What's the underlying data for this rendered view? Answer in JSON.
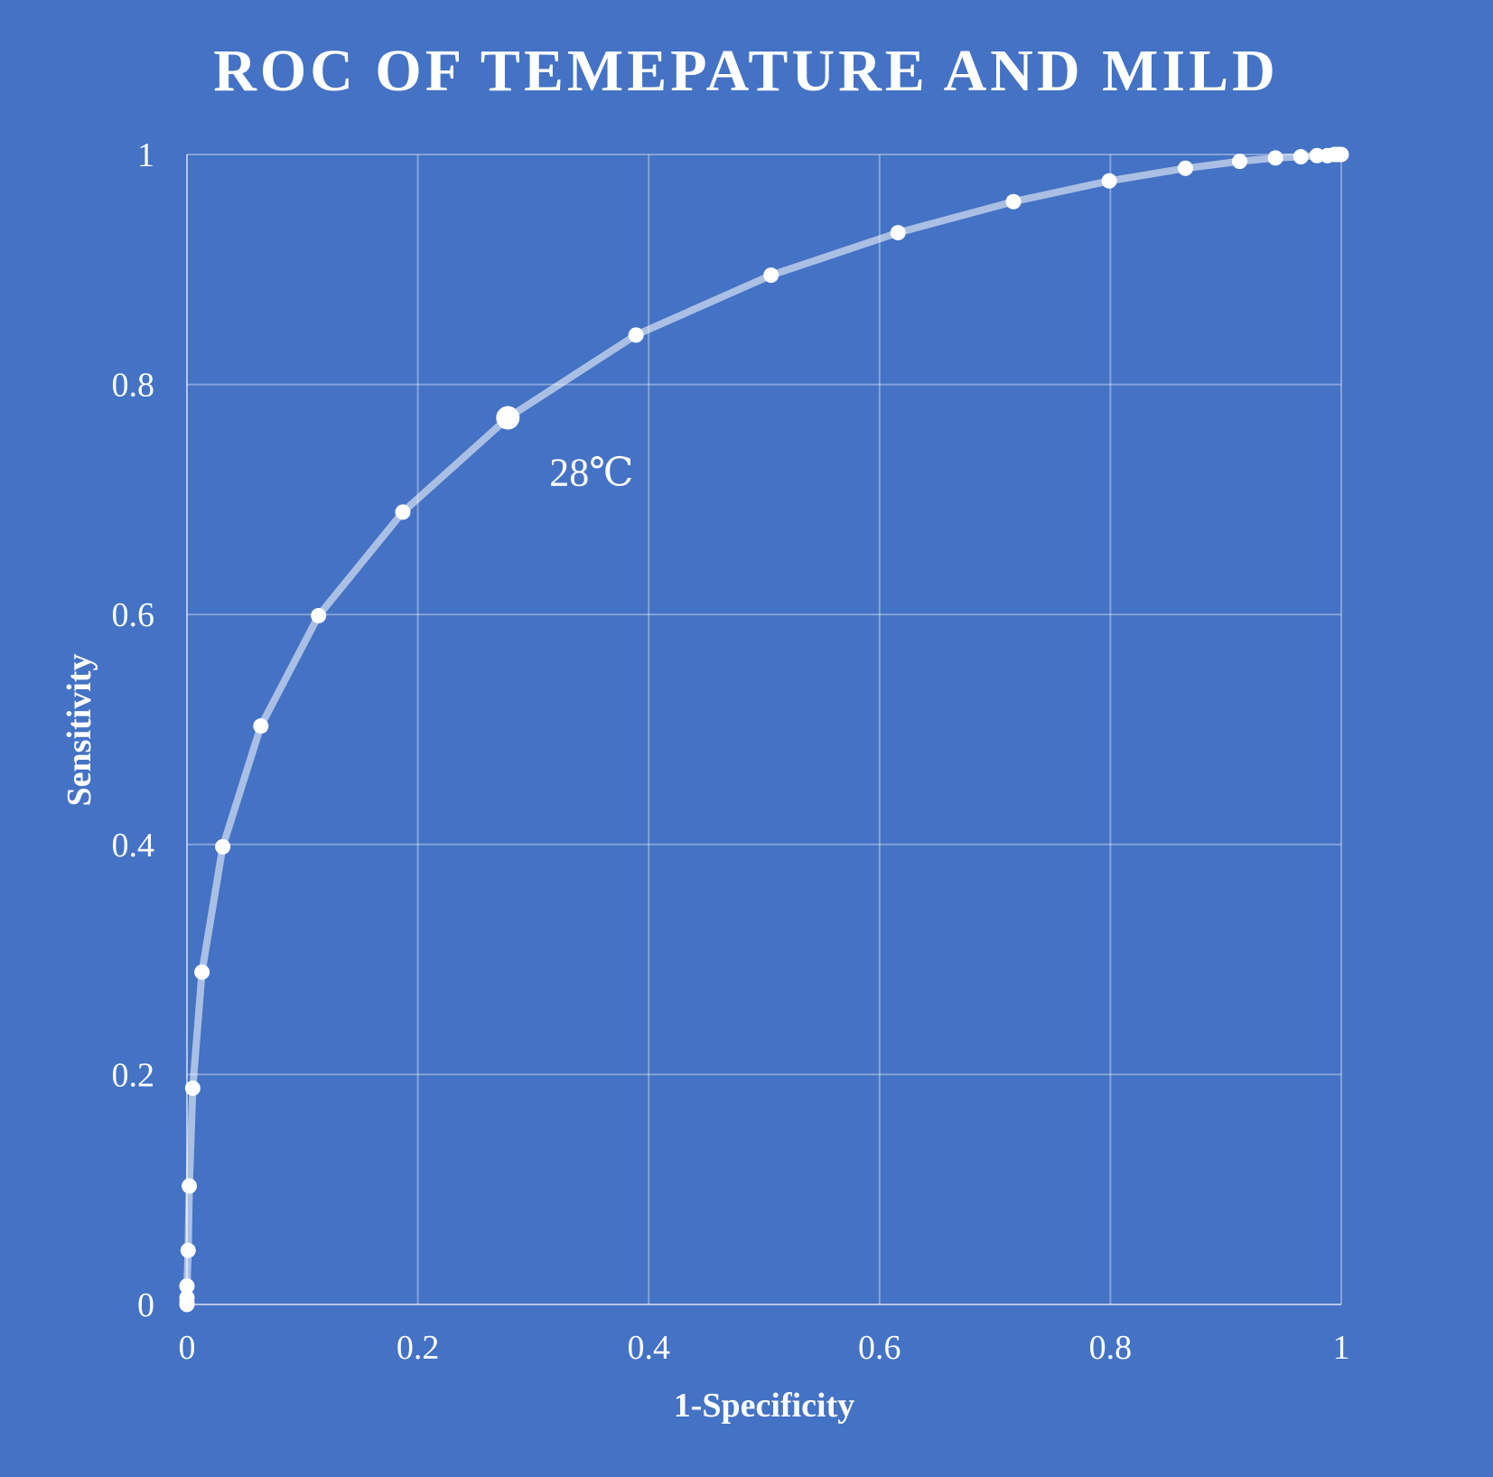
{
  "chart_data": {
    "type": "line",
    "title": "ROC OF TEMEPATURE AND MILD",
    "xlabel": "1-Specificity",
    "ylabel": "Sensitivity",
    "xlim": [
      0,
      1
    ],
    "ylim": [
      0,
      1
    ],
    "xticks": [
      "0",
      "0.2",
      "0.4",
      "0.6",
      "0.8",
      "1"
    ],
    "yticks": [
      "0",
      "0.2",
      "0.4",
      "0.6",
      "0.8",
      "1"
    ],
    "grid": true,
    "legend": "none",
    "series": [
      {
        "x": [
          0.0,
          0.0,
          0.0,
          0.0,
          0.001,
          0.002,
          0.005,
          0.013,
          0.031,
          0.064,
          0.114,
          0.187,
          0.278,
          0.389,
          0.506,
          0.616,
          0.716,
          0.799,
          0.865,
          0.912,
          0.943,
          0.965,
          0.979,
          0.988,
          0.994,
          0.997,
          0.999,
          1.0
        ],
        "y": [
          0.0,
          0.002,
          0.006,
          0.016,
          0.047,
          0.103,
          0.188,
          0.289,
          0.398,
          0.503,
          0.599,
          0.689,
          0.771,
          0.843,
          0.895,
          0.932,
          0.959,
          0.977,
          0.988,
          0.994,
          0.997,
          0.998,
          0.999,
          0.999,
          1.0,
          1.0,
          1.0,
          1.0
        ]
      }
    ],
    "highlight": {
      "x": 0.278,
      "y": 0.771,
      "label": "28℃"
    },
    "colors": {
      "background": "#4472c4",
      "line": "#c7d3ee",
      "marker": "#ffffff",
      "text": "#ffffff"
    }
  }
}
